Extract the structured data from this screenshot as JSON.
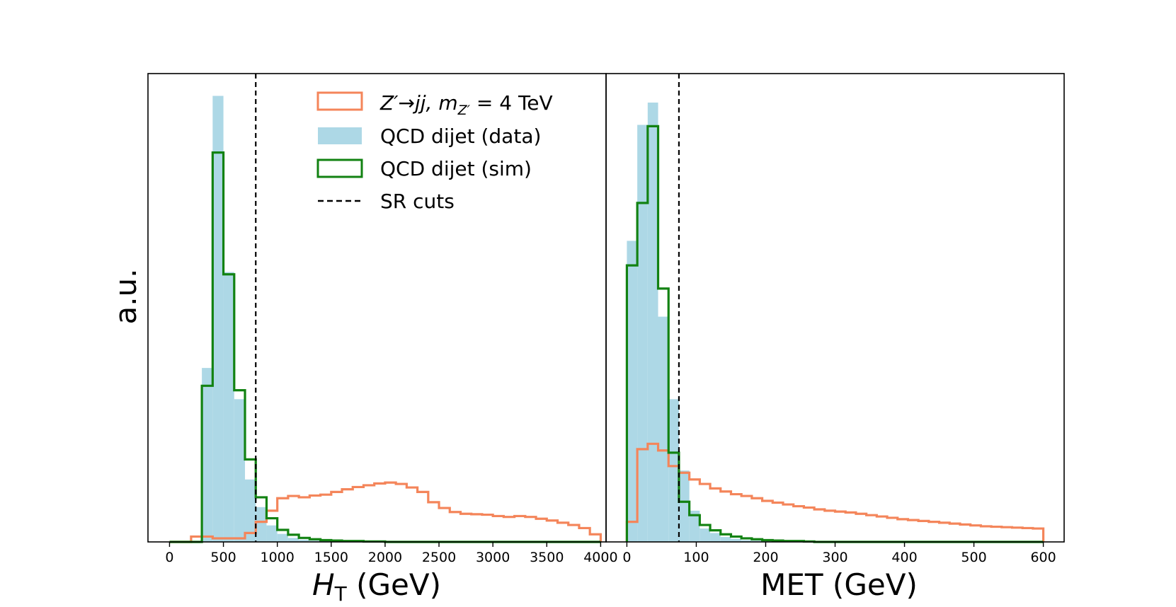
{
  "figure": {
    "ylabel": "a.u."
  },
  "colors": {
    "signal": "#f4855a",
    "data_fill": "#add8e6",
    "sim": "#128212",
    "cut": "#000000"
  },
  "legend": {
    "signal_label": "Z′→jj, m",
    "signal_sub": "Z′",
    "signal_suffix": " = 4 TeV",
    "data_label": "QCD dijet (data)",
    "sim_label": "QCD dijet (sim)",
    "cut_label": "SR cuts"
  },
  "chart_data": [
    {
      "type": "histogram",
      "title": "",
      "xlabel_main": "H",
      "xlabel_sub": "T",
      "xlabel_unit": " (GeV)",
      "ylabel": "a.u.",
      "xlim": [
        -200,
        4050
      ],
      "ylim": [
        0,
        1.05
      ],
      "xticks": [
        0,
        500,
        1000,
        1500,
        2000,
        2500,
        3000,
        3500,
        4000
      ],
      "xtick_labels": [
        "0",
        "500",
        "1000",
        "1500",
        "2000",
        "2500",
        "3000",
        "3500",
        "4000"
      ],
      "sr_cut": 800,
      "series": [
        {
          "name": "QCD dijet (data)",
          "style": "filled",
          "edges": [
            0,
            100,
            200,
            300,
            400,
            500,
            600,
            700,
            800,
            900,
            1000,
            1100,
            1200,
            1300,
            1400,
            1500,
            1600,
            1700,
            1800,
            1900,
            2000
          ],
          "values": [
            0,
            0,
            0.002,
            0.39,
            1.0,
            0.605,
            0.32,
            0.14,
            0.078,
            0.037,
            0.018,
            0.009,
            0.005,
            0.003,
            0.002,
            0.001,
            0.001,
            0,
            0,
            0
          ]
        },
        {
          "name": "QCD dijet (sim)",
          "style": "step",
          "edges": [
            0,
            100,
            200,
            300,
            400,
            500,
            600,
            700,
            800,
            900,
            1000,
            1100,
            1200,
            1300,
            1400,
            1500,
            1600,
            1700,
            1800,
            1900,
            2000,
            2500,
            3000,
            3500,
            4000
          ],
          "values": [
            0,
            0,
            0,
            0.35,
            0.873,
            0.6,
            0.34,
            0.185,
            0.1,
            0.053,
            0.027,
            0.016,
            0.009,
            0.006,
            0.004,
            0.003,
            0.002,
            0.002,
            0.001,
            0.001,
            0,
            0,
            0,
            0
          ]
        },
        {
          "name": "Z′→jj, m_Z′ = 4 TeV",
          "style": "step",
          "edges": [
            0,
            100,
            200,
            300,
            400,
            500,
            600,
            700,
            800,
            900,
            1000,
            1100,
            1200,
            1300,
            1400,
            1500,
            1600,
            1700,
            1800,
            1900,
            2000,
            2100,
            2200,
            2300,
            2400,
            2500,
            2600,
            2700,
            2800,
            2900,
            3000,
            3100,
            3200,
            3300,
            3400,
            3500,
            3600,
            3700,
            3800,
            3900,
            4000
          ],
          "values": [
            0.0,
            0.0,
            0.012,
            0.012,
            0.008,
            0.008,
            0.008,
            0.02,
            0.045,
            0.07,
            0.098,
            0.103,
            0.1,
            0.104,
            0.106,
            0.112,
            0.118,
            0.123,
            0.127,
            0.131,
            0.133,
            0.13,
            0.122,
            0.112,
            0.089,
            0.076,
            0.067,
            0.063,
            0.062,
            0.061,
            0.058,
            0.056,
            0.058,
            0.056,
            0.052,
            0.048,
            0.043,
            0.038,
            0.031,
            0.017
          ]
        }
      ]
    },
    {
      "type": "histogram",
      "title": "",
      "xlabel": "MET (GeV)",
      "xlim": [
        -30,
        630
      ],
      "ylim": [
        0,
        1.05
      ],
      "xticks": [
        0,
        100,
        200,
        300,
        400,
        500,
        600
      ],
      "xtick_labels": [
        "0",
        "100",
        "200",
        "300",
        "400",
        "500",
        "600"
      ],
      "sr_cut": 75,
      "series": [
        {
          "name": "QCD dijet (data)",
          "style": "filled",
          "edges": [
            0,
            15,
            30,
            45,
            60,
            75,
            90,
            105,
            120,
            135,
            150,
            165,
            180,
            195,
            210,
            225,
            240,
            255,
            270
          ],
          "values": [
            0.675,
            0.935,
            0.985,
            0.505,
            0.32,
            0.16,
            0.07,
            0.03,
            0.02,
            0.011,
            0.007,
            0.004,
            0.003,
            0.002,
            0.001,
            0.001,
            0,
            0
          ]
        },
        {
          "name": "QCD dijet (sim)",
          "style": "step",
          "edges": [
            0,
            15,
            30,
            45,
            60,
            75,
            90,
            105,
            120,
            135,
            150,
            165,
            180,
            195,
            210,
            225,
            240,
            255,
            270,
            300,
            600
          ],
          "values": [
            0.62,
            0.76,
            0.932,
            0.568,
            0.2,
            0.09,
            0.06,
            0.038,
            0.026,
            0.017,
            0.012,
            0.008,
            0.006,
            0.004,
            0.003,
            0.002,
            0.002,
            0.001,
            0,
            0
          ]
        },
        {
          "name": "Z′→jj, m_Z′ = 4 TeV",
          "style": "step",
          "edges": [
            0,
            15,
            30,
            45,
            60,
            75,
            90,
            105,
            120,
            135,
            150,
            165,
            180,
            195,
            210,
            225,
            240,
            255,
            270,
            285,
            300,
            315,
            330,
            345,
            360,
            375,
            390,
            405,
            420,
            435,
            450,
            465,
            480,
            495,
            510,
            525,
            540,
            555,
            570,
            585,
            600
          ],
          "values": [
            0.045,
            0.208,
            0.22,
            0.205,
            0.17,
            0.155,
            0.14,
            0.13,
            0.12,
            0.113,
            0.107,
            0.103,
            0.098,
            0.092,
            0.088,
            0.084,
            0.08,
            0.077,
            0.073,
            0.07,
            0.068,
            0.066,
            0.063,
            0.06,
            0.057,
            0.054,
            0.051,
            0.049,
            0.047,
            0.045,
            0.043,
            0.041,
            0.039,
            0.037,
            0.035,
            0.034,
            0.033,
            0.032,
            0.031,
            0.03
          ]
        }
      ]
    }
  ]
}
